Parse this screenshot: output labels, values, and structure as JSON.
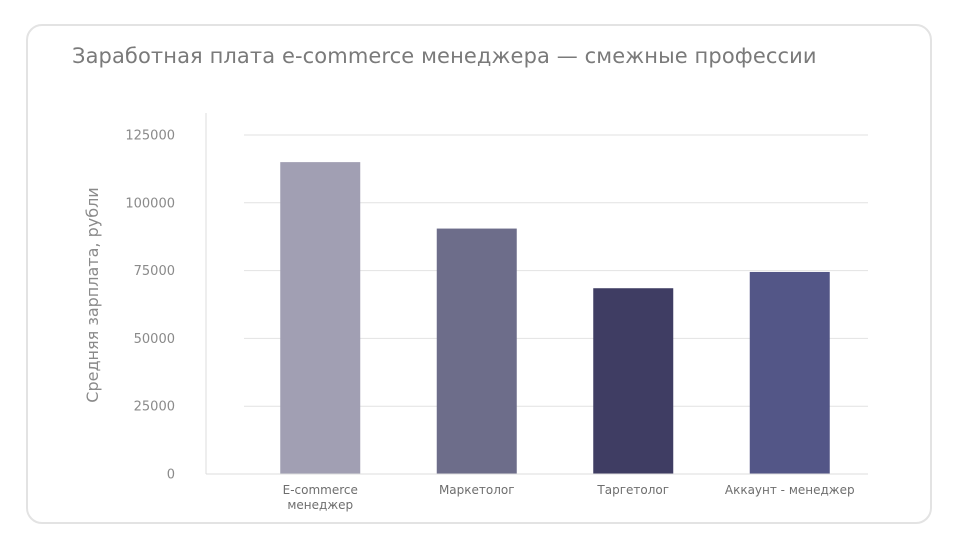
{
  "chart_data": {
    "type": "bar",
    "title": "Заработная плата e-commerce менеджера — смежные профессии",
    "xlabel": "",
    "ylabel": "Средняя зарплата, рубли",
    "ylim": [
      0,
      125000
    ],
    "yticks": [
      0,
      25000,
      50000,
      75000,
      100000,
      125000
    ],
    "categories": [
      [
        "E-commerce",
        "менеджер"
      ],
      [
        "Маркетолог"
      ],
      [
        "Таргетолог"
      ],
      [
        "Аккаунт - менеджер"
      ]
    ],
    "values": [
      115000,
      90500,
      68500,
      74500
    ],
    "colors": [
      "#a19fb3",
      "#6d6d8a",
      "#3f3d63",
      "#535687"
    ],
    "grid": true,
    "legend": "none"
  }
}
